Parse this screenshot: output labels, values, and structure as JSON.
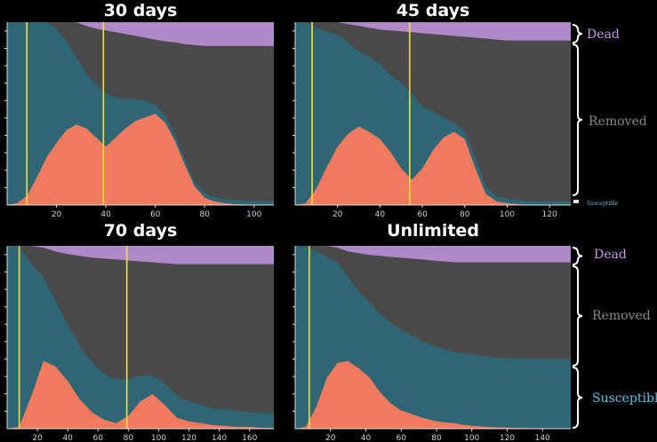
{
  "colors": {
    "background": "#000000",
    "dead": "#b189c9",
    "removed": "#4a4a4a",
    "susceptible": "#2e6675",
    "infected": "#f07a5e",
    "isolation_line": "#f3df3c",
    "axis": "#dddddd",
    "legend_dead": "#c79ae3",
    "legend_removed": "#8a8a8a",
    "legend_susceptible": "#5fc3e4"
  },
  "legend_top": {
    "dead": "Dead",
    "removed": "Removed",
    "susceptible": "Susceptible"
  },
  "legend_bottom": {
    "dead": "Dead",
    "removed": "Removed",
    "susceptible": "Susceptible"
  },
  "chart_data": [
    {
      "type": "area",
      "title": "30 days",
      "xlim": [
        0,
        108
      ],
      "ylim": [
        0,
        1
      ],
      "xticks": [
        20,
        40,
        60,
        80,
        100
      ],
      "vlines": [
        8,
        39
      ],
      "x": [
        0,
        4,
        8,
        12,
        16,
        20,
        24,
        28,
        32,
        36,
        40,
        44,
        48,
        52,
        56,
        60,
        64,
        68,
        72,
        76,
        80,
        84,
        88,
        92,
        96,
        100,
        104,
        108
      ],
      "series": [
        {
          "key": "infected",
          "values": [
            0.0,
            0.01,
            0.05,
            0.15,
            0.26,
            0.34,
            0.41,
            0.44,
            0.42,
            0.37,
            0.32,
            0.37,
            0.42,
            0.46,
            0.48,
            0.5,
            0.45,
            0.35,
            0.22,
            0.1,
            0.04,
            0.02,
            0.01,
            0.005,
            0.003,
            0.0,
            0.0,
            0.0
          ]
        },
        {
          "key": "susceptible",
          "values": [
            1.0,
            0.99,
            0.95,
            0.85,
            0.74,
            0.62,
            0.49,
            0.37,
            0.3,
            0.29,
            0.29,
            0.22,
            0.16,
            0.12,
            0.09,
            0.05,
            0.04,
            0.035,
            0.03,
            0.027,
            0.025,
            0.024,
            0.023,
            0.022,
            0.022,
            0.022,
            0.022,
            0.022
          ]
        },
        {
          "key": "dead",
          "values": [
            0.0,
            0.0,
            0.0,
            0.0,
            0.0,
            0.0,
            0.0,
            0.0,
            0.02,
            0.035,
            0.045,
            0.055,
            0.065,
            0.075,
            0.085,
            0.095,
            0.105,
            0.11,
            0.12,
            0.125,
            0.13,
            0.13,
            0.13,
            0.13,
            0.13,
            0.13,
            0.13,
            0.13
          ]
        }
      ]
    },
    {
      "type": "area",
      "title": "45 days",
      "xlim": [
        0,
        130
      ],
      "ylim": [
        0,
        1
      ],
      "xticks": [
        20,
        40,
        60,
        80,
        100,
        120
      ],
      "vlines": [
        8,
        54
      ],
      "x": [
        0,
        5,
        10,
        15,
        20,
        25,
        30,
        35,
        40,
        45,
        50,
        55,
        60,
        65,
        70,
        75,
        80,
        85,
        90,
        95,
        100,
        105,
        110,
        115,
        120,
        125,
        130
      ],
      "series": [
        {
          "key": "infected",
          "values": [
            0.0,
            0.01,
            0.09,
            0.21,
            0.32,
            0.39,
            0.43,
            0.4,
            0.36,
            0.29,
            0.2,
            0.14,
            0.2,
            0.3,
            0.37,
            0.4,
            0.36,
            0.2,
            0.06,
            0.02,
            0.01,
            0.005,
            0.0,
            0.0,
            0.0,
            0.0,
            0.0
          ]
        },
        {
          "key": "susceptible",
          "values": [
            1.0,
            0.99,
            0.88,
            0.74,
            0.61,
            0.5,
            0.41,
            0.41,
            0.41,
            0.42,
            0.47,
            0.47,
            0.34,
            0.21,
            0.11,
            0.05,
            0.04,
            0.06,
            0.04,
            0.03,
            0.025,
            0.022,
            0.02,
            0.02,
            0.02,
            0.02,
            0.02
          ]
        },
        {
          "key": "dead",
          "values": [
            0.0,
            0.0,
            0.0,
            0.0,
            0.0,
            0.01,
            0.02,
            0.03,
            0.04,
            0.045,
            0.05,
            0.055,
            0.06,
            0.065,
            0.07,
            0.075,
            0.08,
            0.085,
            0.09,
            0.095,
            0.1,
            0.1,
            0.1,
            0.1,
            0.1,
            0.1,
            0.1
          ]
        }
      ]
    },
    {
      "type": "area",
      "title": "70 days",
      "xlim": [
        0,
        176
      ],
      "ylim": [
        0,
        1
      ],
      "xticks": [
        20,
        40,
        60,
        80,
        100,
        120,
        140,
        160
      ],
      "vlines": [
        8,
        79
      ],
      "x": [
        0,
        8,
        16,
        24,
        32,
        40,
        48,
        56,
        64,
        72,
        80,
        88,
        96,
        104,
        112,
        120,
        128,
        136,
        144,
        152,
        160,
        168,
        176
      ],
      "series": [
        {
          "key": "infected",
          "values": [
            0.0,
            0.01,
            0.18,
            0.37,
            0.34,
            0.26,
            0.16,
            0.09,
            0.05,
            0.03,
            0.07,
            0.15,
            0.19,
            0.13,
            0.06,
            0.04,
            0.03,
            0.02,
            0.015,
            0.01,
            0.01,
            0.005,
            0.005
          ]
        },
        {
          "key": "susceptible",
          "values": [
            1.0,
            0.99,
            0.72,
            0.46,
            0.36,
            0.31,
            0.29,
            0.27,
            0.25,
            0.24,
            0.2,
            0.14,
            0.1,
            0.12,
            0.12,
            0.11,
            0.1,
            0.09,
            0.09,
            0.085,
            0.08,
            0.08,
            0.08
          ]
        },
        {
          "key": "dead",
          "values": [
            0.0,
            0.0,
            0.0,
            0.01,
            0.03,
            0.045,
            0.055,
            0.065,
            0.07,
            0.075,
            0.08,
            0.085,
            0.09,
            0.095,
            0.1,
            0.1,
            0.1,
            0.1,
            0.1,
            0.1,
            0.1,
            0.1,
            0.1
          ]
        }
      ]
    },
    {
      "type": "area",
      "title": "Unlimited",
      "xlim": [
        0,
        156
      ],
      "ylim": [
        0,
        1
      ],
      "xticks": [
        20,
        40,
        60,
        80,
        100,
        120,
        140
      ],
      "vlines": [
        8
      ],
      "x": [
        0,
        6,
        12,
        18,
        24,
        30,
        36,
        42,
        48,
        54,
        60,
        66,
        72,
        78,
        84,
        90,
        96,
        102,
        108,
        114,
        120,
        126,
        132,
        138,
        144,
        150,
        156
      ],
      "series": [
        {
          "key": "infected",
          "values": [
            0.0,
            0.01,
            0.12,
            0.28,
            0.36,
            0.37,
            0.33,
            0.28,
            0.2,
            0.14,
            0.1,
            0.08,
            0.06,
            0.045,
            0.035,
            0.03,
            0.02,
            0.015,
            0.01,
            0.008,
            0.006,
            0.005,
            0.004,
            0.003,
            0.002,
            0.002,
            0.002
          ]
        },
        {
          "key": "susceptible",
          "values": [
            1.0,
            0.99,
            0.85,
            0.66,
            0.55,
            0.46,
            0.42,
            0.41,
            0.43,
            0.44,
            0.44,
            0.43,
            0.42,
            0.41,
            0.4,
            0.39,
            0.39,
            0.39,
            0.385,
            0.38,
            0.38,
            0.38,
            0.38,
            0.38,
            0.38,
            0.38,
            0.38
          ]
        },
        {
          "key": "dead",
          "values": [
            0.0,
            0.0,
            0.0,
            0.0,
            0.01,
            0.03,
            0.04,
            0.05,
            0.055,
            0.06,
            0.065,
            0.07,
            0.075,
            0.08,
            0.085,
            0.09,
            0.09,
            0.09,
            0.09,
            0.09,
            0.09,
            0.09,
            0.09,
            0.09,
            0.09,
            0.09,
            0.09
          ]
        }
      ]
    }
  ]
}
